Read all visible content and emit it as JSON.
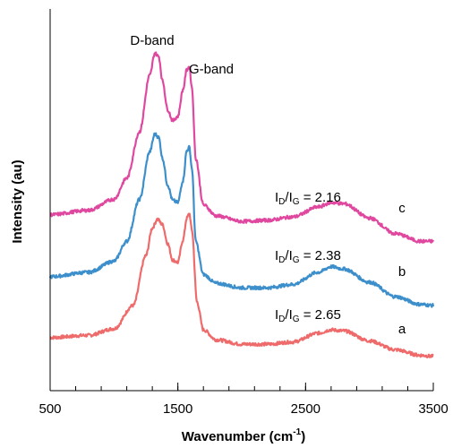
{
  "chart_data": {
    "type": "line",
    "title": "",
    "xlabel": "Wavenumber (cm",
    "xlabel_sup": "-1",
    "xlabel_tail": ")",
    "ylabel": "Intensity (au)",
    "xlim": [
      500,
      3500
    ],
    "ylim": [
      0,
      3.45
    ],
    "x_ticks": [
      500,
      1500,
      2500,
      3500
    ],
    "x_tick_labels": [
      "500",
      "1500",
      "2500",
      "3500"
    ],
    "x_minor_step": 200,
    "grid": false,
    "y_ticks_shown": false,
    "colors": {
      "a": "#ef6b6b",
      "b": "#3d8fcb",
      "c": "#e048a0"
    },
    "band_labels": {
      "d": "D-band",
      "g": "G-band"
    },
    "series": [
      {
        "label": "a",
        "ratio": "2.65",
        "x": [
          500,
          800,
          1000,
          1150,
          1250,
          1300,
          1340,
          1380,
          1420,
          1460,
          1500,
          1540,
          1570,
          1590,
          1610,
          1650,
          1700,
          1800,
          2000,
          2200,
          2400,
          2600,
          2700,
          2800,
          3000,
          3200,
          3400,
          3500
        ],
        "y": [
          0.48,
          0.5,
          0.56,
          0.77,
          1.22,
          1.47,
          1.55,
          1.5,
          1.33,
          1.18,
          1.16,
          1.36,
          1.56,
          1.6,
          1.45,
          0.8,
          0.55,
          0.46,
          0.42,
          0.42,
          0.44,
          0.52,
          0.55,
          0.54,
          0.45,
          0.37,
          0.32,
          0.31
        ]
      },
      {
        "label": "b",
        "ratio": "2.38",
        "x": [
          500,
          800,
          1000,
          1100,
          1200,
          1280,
          1320,
          1350,
          1380,
          1420,
          1460,
          1500,
          1540,
          1570,
          1590,
          1610,
          1640,
          1700,
          1800,
          2000,
          2200,
          2400,
          2600,
          2700,
          2800,
          3000,
          3200,
          3400,
          3500
        ],
        "y": [
          1.03,
          1.07,
          1.17,
          1.35,
          1.73,
          2.16,
          2.32,
          2.29,
          2.1,
          1.86,
          1.72,
          1.7,
          1.9,
          2.17,
          2.2,
          2.01,
          1.35,
          1.05,
          0.97,
          0.93,
          0.93,
          0.96,
          1.07,
          1.12,
          1.1,
          0.98,
          0.85,
          0.78,
          0.77
        ]
      },
      {
        "label": "c",
        "ratio": "2.16",
        "x": [
          500,
          800,
          1000,
          1100,
          1200,
          1280,
          1320,
          1350,
          1380,
          1420,
          1460,
          1500,
          1540,
          1570,
          1590,
          1610,
          1640,
          1700,
          1800,
          2000,
          2200,
          2400,
          2600,
          2700,
          2800,
          3000,
          3200,
          3400,
          3500
        ],
        "y": [
          1.59,
          1.63,
          1.73,
          1.92,
          2.34,
          2.85,
          3.05,
          3.02,
          2.8,
          2.54,
          2.44,
          2.48,
          2.72,
          2.9,
          2.93,
          2.74,
          2.1,
          1.68,
          1.58,
          1.53,
          1.54,
          1.57,
          1.66,
          1.7,
          1.69,
          1.56,
          1.42,
          1.35,
          1.35
        ]
      }
    ]
  }
}
